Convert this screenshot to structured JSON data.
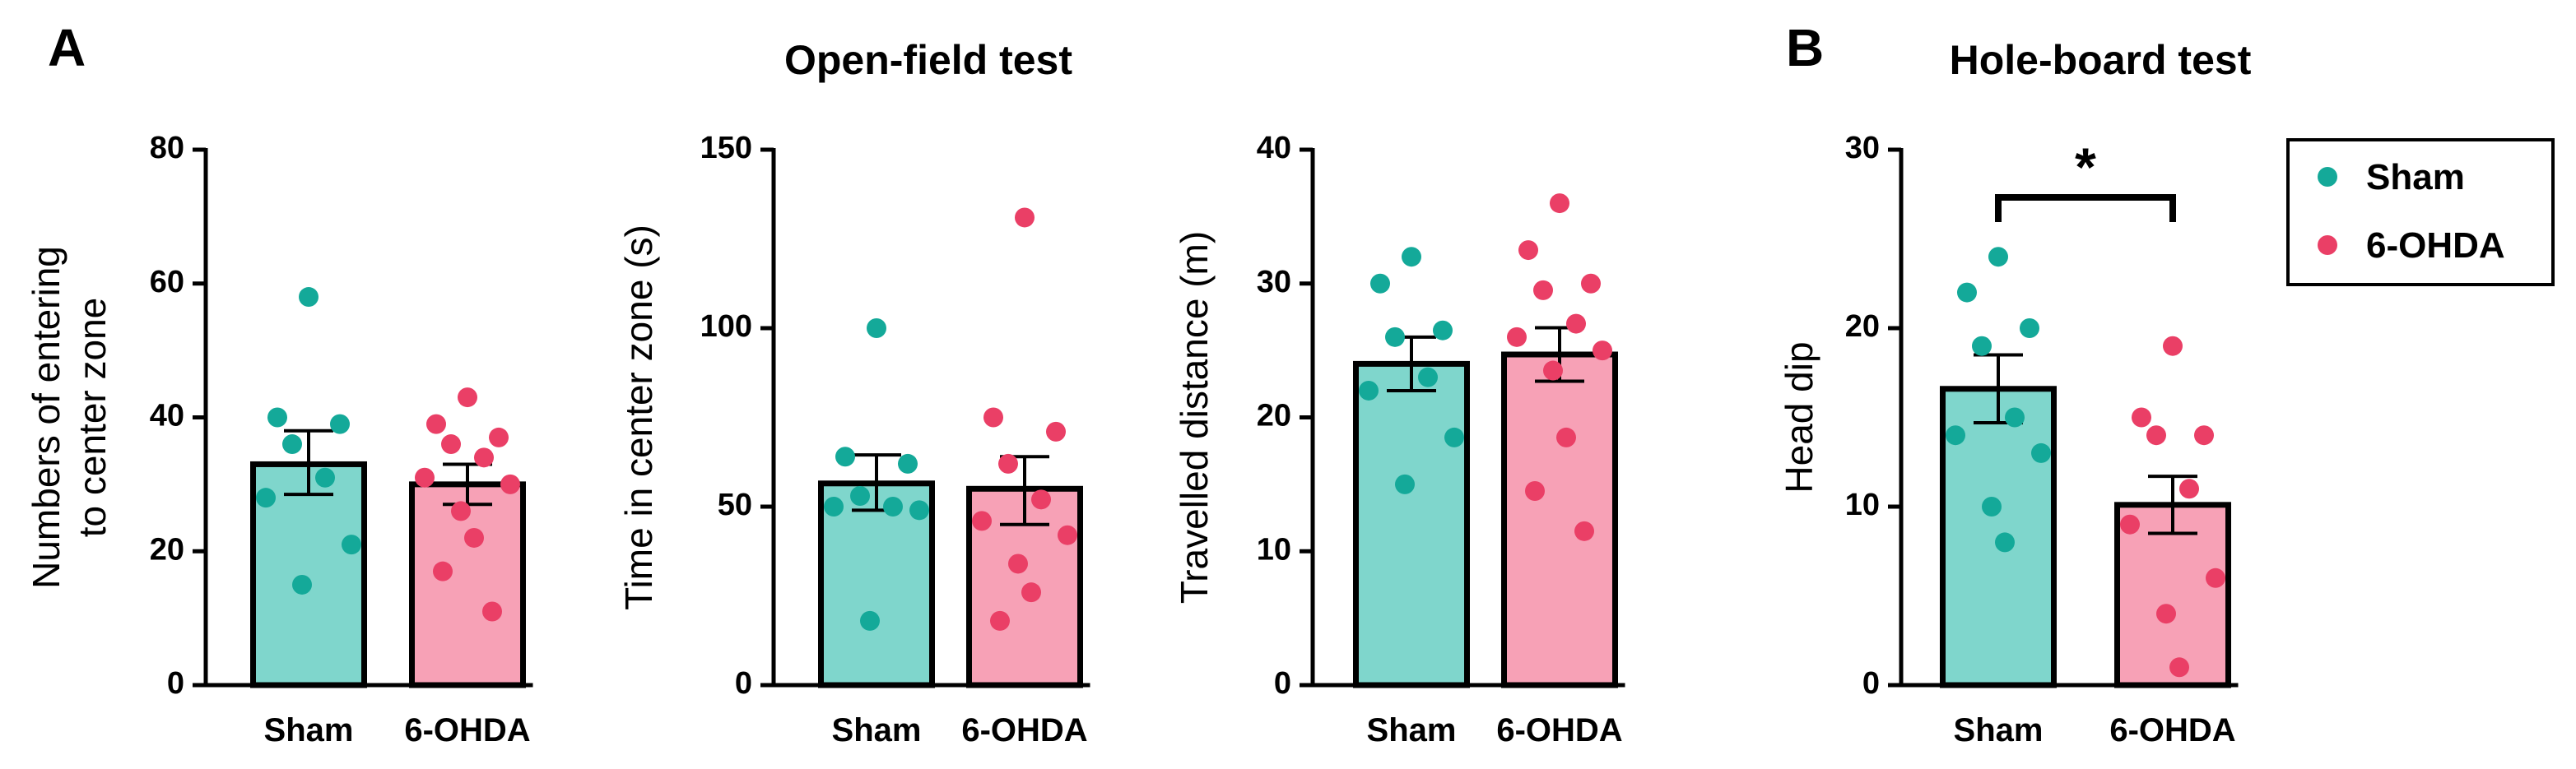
{
  "panels": {
    "a_letter": "A",
    "a_title": "Open-field test",
    "b_letter": "B",
    "b_title": "Hole-board test"
  },
  "legend": {
    "sham": "Sham",
    "ohda": "6-OHDA"
  },
  "colors": {
    "sham_bar": "#7fd6cc",
    "sham_dot": "#14a999",
    "ohda_bar": "#f7a1b6",
    "ohda_dot": "#ea3f66",
    "axis": "#000000"
  },
  "chart_data": [
    {
      "type": "bar",
      "title": "",
      "ylabel": [
        "Numbers of entering",
        "to center zone"
      ],
      "xlabel": "",
      "ylim": [
        0,
        80
      ],
      "yticks": [
        0,
        20,
        40,
        60,
        80
      ],
      "categories": [
        "Sham",
        "6-OHDA"
      ],
      "series": [
        {
          "name": "Sham",
          "mean": 33,
          "sem_low": 28.5,
          "sem_high": 38,
          "points": [
            58,
            40,
            39,
            36,
            31,
            28,
            21,
            15
          ]
        },
        {
          "name": "6-OHDA",
          "mean": 30,
          "sem_low": 27,
          "sem_high": 33,
          "points": [
            43,
            39,
            37,
            36,
            34,
            31,
            30,
            26,
            22,
            17,
            11
          ]
        }
      ]
    },
    {
      "type": "bar",
      "title": "",
      "ylabel": [
        "Time in center zone (s)"
      ],
      "xlabel": "",
      "ylim": [
        0,
        150
      ],
      "yticks": [
        0,
        50,
        100,
        150
      ],
      "categories": [
        "Sham",
        "6-OHDA"
      ],
      "series": [
        {
          "name": "Sham",
          "mean": 56.5,
          "sem_low": 49,
          "sem_high": 64.5,
          "points": [
            100,
            64,
            62,
            53,
            50,
            50,
            49,
            18
          ]
        },
        {
          "name": "6-OHDA",
          "mean": 55,
          "sem_low": 45,
          "sem_high": 64,
          "points": [
            131,
            75,
            71,
            62,
            52,
            46,
            42,
            34,
            26,
            18
          ]
        }
      ]
    },
    {
      "type": "bar",
      "title": "",
      "ylabel": [
        "Travelled distance (m)"
      ],
      "xlabel": "",
      "ylim": [
        0,
        40
      ],
      "yticks": [
        0,
        10,
        20,
        30,
        40
      ],
      "categories": [
        "Sham",
        "6-OHDA"
      ],
      "series": [
        {
          "name": "Sham",
          "mean": 24,
          "sem_low": 22,
          "sem_high": 26,
          "points": [
            32,
            30,
            26.5,
            26,
            23,
            22,
            18.5,
            15
          ]
        },
        {
          "name": "6-OHDA",
          "mean": 24.7,
          "sem_low": 22.7,
          "sem_high": 26.7,
          "points": [
            36,
            32.5,
            30,
            29.5,
            27,
            26,
            25,
            23.5,
            18.5,
            14.5,
            11.5
          ]
        }
      ]
    },
    {
      "type": "bar",
      "title": "",
      "ylabel": [
        "Head dip"
      ],
      "xlabel": "",
      "ylim": [
        0,
        30
      ],
      "yticks": [
        0,
        10,
        20,
        30
      ],
      "categories": [
        "Sham",
        "6-OHDA"
      ],
      "significance": "*",
      "series": [
        {
          "name": "Sham",
          "mean": 16.6,
          "sem_low": 14.7,
          "sem_high": 18.5,
          "points": [
            24,
            22,
            20,
            19,
            15,
            14,
            13,
            10,
            8
          ]
        },
        {
          "name": "6-OHDA",
          "mean": 10.1,
          "sem_low": 8.5,
          "sem_high": 11.7,
          "points": [
            19,
            15,
            14,
            14,
            11,
            9,
            6,
            4,
            1
          ]
        }
      ]
    }
  ]
}
